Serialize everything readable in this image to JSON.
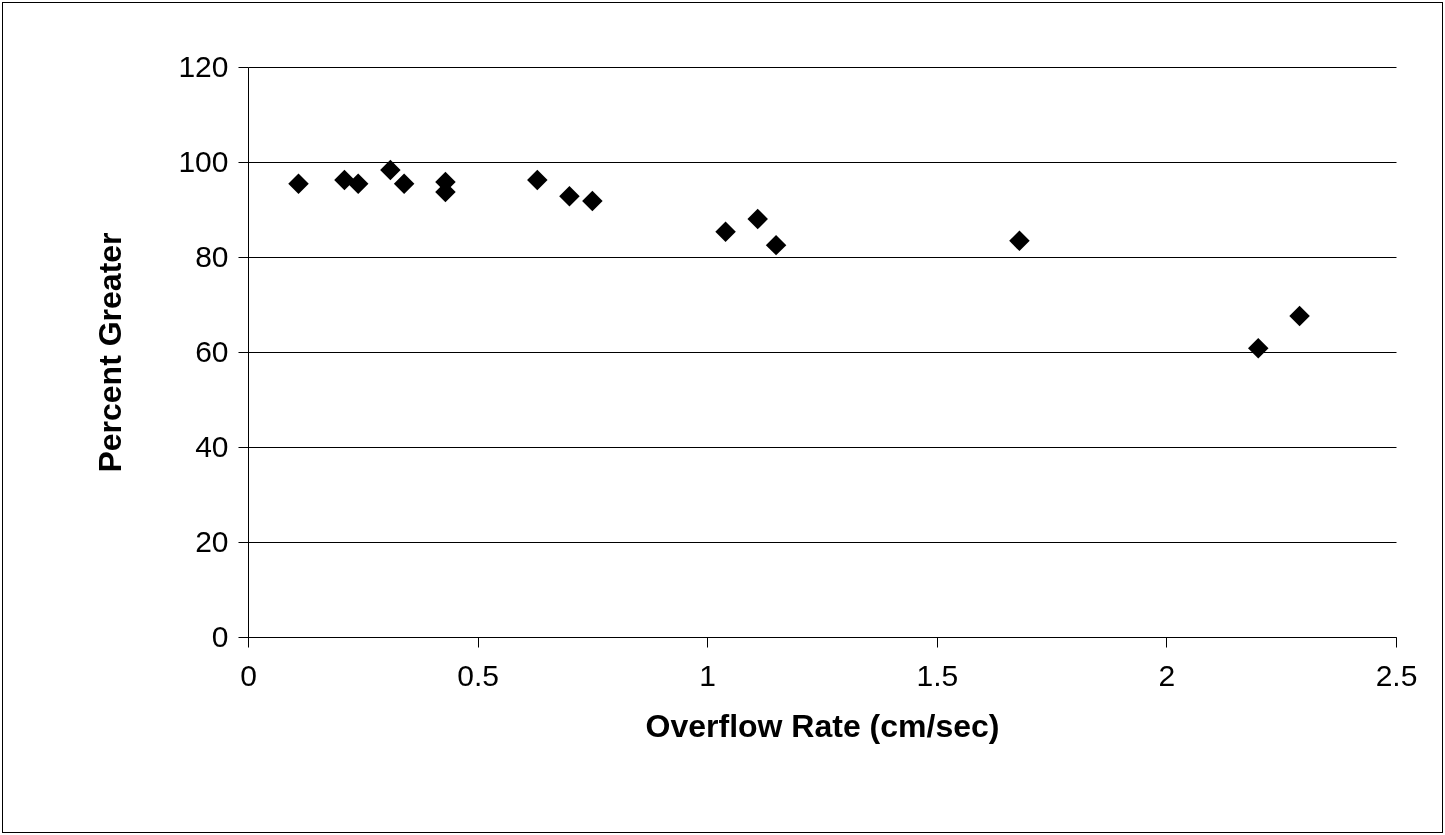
{
  "chart_data": {
    "type": "scatter",
    "xlabel": "Overflow Rate (cm/sec)",
    "ylabel": "Percent Greater",
    "x": [
      0.11,
      0.21,
      0.24,
      0.31,
      0.34,
      0.43,
      0.43,
      0.63,
      0.7,
      0.75,
      1.04,
      1.11,
      1.15,
      1.68,
      2.2,
      2.29
    ],
    "series": [
      {
        "color": "#000000",
        "values": [
          95.4,
          96.2,
          95.4,
          98.3,
          95.4,
          95.8,
          93.7,
          96.2,
          92.8,
          91.8,
          85.3,
          88.0,
          82.5,
          83.4,
          60.8,
          67.6
        ]
      }
    ],
    "xlim": [
      0,
      2.5
    ],
    "xticks": [
      0,
      0.5,
      1,
      1.5,
      2,
      2.5
    ],
    "ylim": [
      0,
      120
    ],
    "yticks": [
      0,
      20,
      40,
      60,
      80,
      100,
      120
    ],
    "grid": "y",
    "marker": "diamond"
  }
}
